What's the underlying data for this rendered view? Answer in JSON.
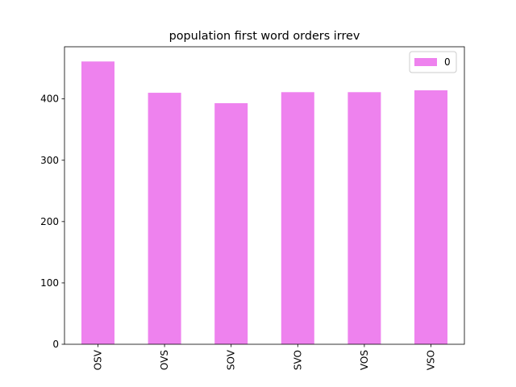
{
  "chart_data": {
    "type": "bar",
    "title": "population first word orders irrev",
    "categories": [
      "OSV",
      "OVS",
      "SOV",
      "SVO",
      "VOS",
      "VSO"
    ],
    "series": [
      {
        "name": "0",
        "values": [
          461,
          410,
          393,
          411,
          411,
          414
        ],
        "color": "#EE82EE"
      }
    ],
    "xlabel": "",
    "ylabel": "",
    "ylim": [
      0,
      485
    ],
    "yticks": [
      0,
      100,
      200,
      300,
      400
    ],
    "grid": false,
    "legend_position": "top-right"
  }
}
